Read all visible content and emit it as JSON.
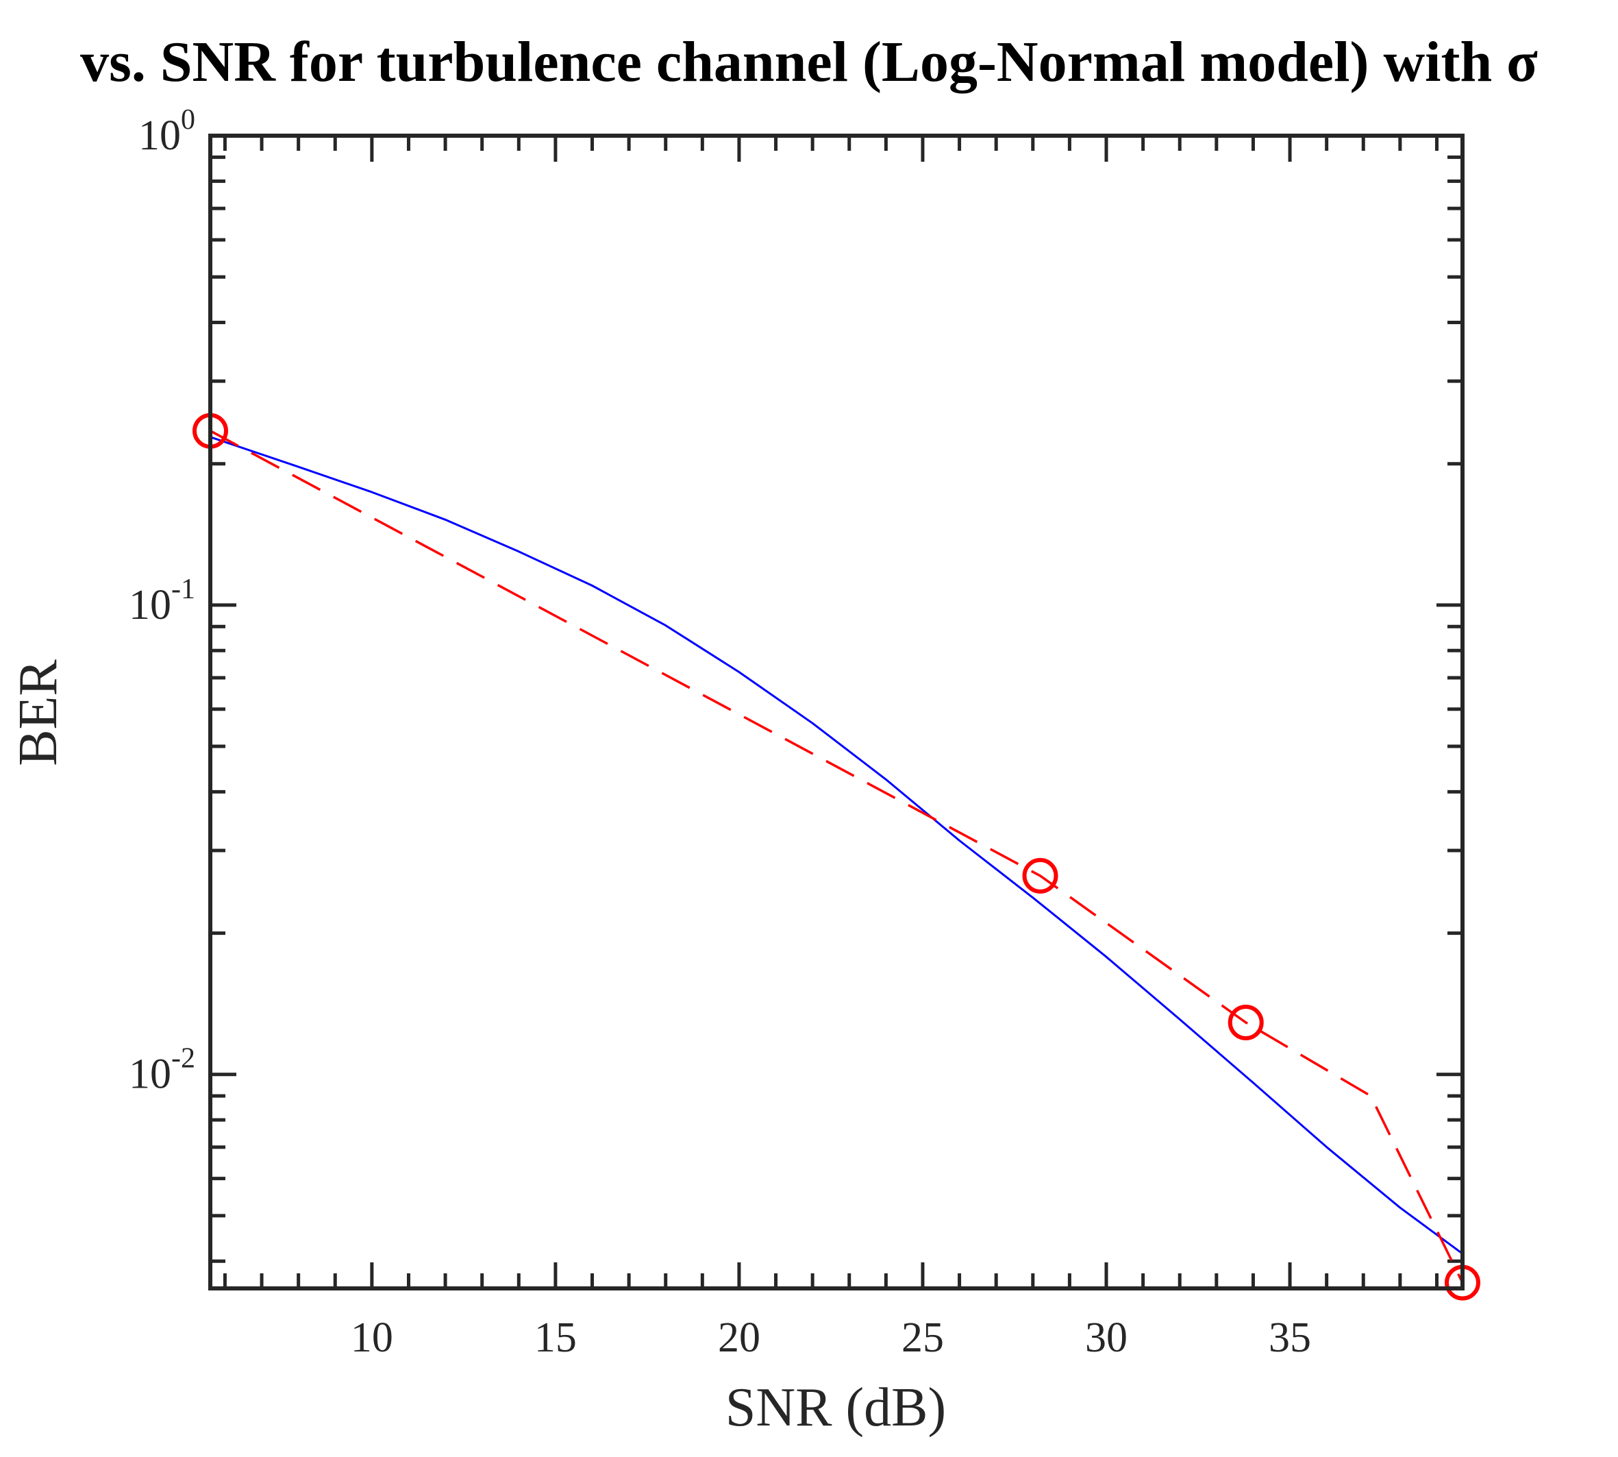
{
  "chart_data": {
    "type": "line",
    "title": "vs. SNR for turbulence channel (Log-Normal model) with σ",
    "xlabel": "SNR (dB)",
    "ylabel": "BER",
    "xlim": [
      5.6,
      39.7
    ],
    "ylim": [
      0.0035,
      1
    ],
    "yscale": "log",
    "grid": false,
    "x_ticks": [
      10,
      15,
      20,
      25,
      30,
      35
    ],
    "y_ticks": [
      {
        "value": 1,
        "base": "10",
        "exp": "0"
      },
      {
        "value": 0.1,
        "base": "10",
        "exp": "-1"
      },
      {
        "value": 0.01,
        "base": "10",
        "exp": "-2"
      }
    ],
    "series": [
      {
        "color": "#0000ff",
        "style": "solid",
        "x": [
          5.6,
          8,
          10,
          12,
          14,
          16,
          18,
          20,
          22,
          24,
          26,
          28,
          30,
          32,
          34,
          36,
          38,
          39.7
        ],
        "y": [
          0.228,
          0.197,
          0.174,
          0.152,
          0.13,
          0.11,
          0.0905,
          0.072,
          0.056,
          0.0425,
          0.0315,
          0.0238,
          0.0178,
          0.0131,
          0.0096,
          0.007,
          0.0052,
          0.00415
        ]
      },
      {
        "color": "#ff0000",
        "style": "dashed",
        "marker": "circle",
        "x": [
          5.6,
          28.2,
          33.8,
          37.2,
          39.7
        ],
        "y": [
          0.235,
          0.0265,
          0.0129,
          0.009,
          0.0036
        ],
        "marker_x": [
          5.6,
          28.2,
          33.8,
          39.7
        ],
        "marker_y": [
          0.235,
          0.0265,
          0.0129,
          0.0036
        ]
      }
    ]
  }
}
